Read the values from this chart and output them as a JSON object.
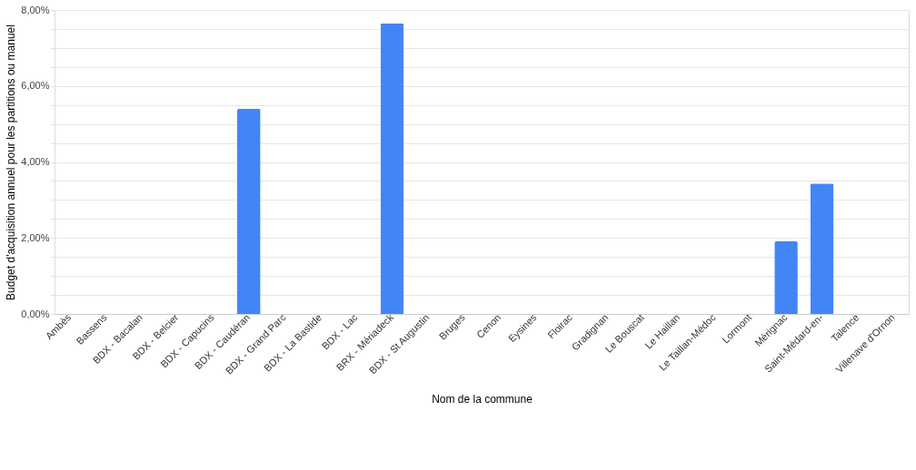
{
  "chart_data": {
    "type": "bar",
    "xlabel": "Nom de la commune",
    "ylabel": "Budget d'acquisition annuel pour les partitions ou manuel",
    "categories": [
      "Ambès",
      "Bassens",
      "BDX - Bacalan",
      "BDX - Belcier",
      "BDX - Capucins",
      "BDX - Caudéran",
      "BDX - Grand Parc",
      "BDX - La Bastide",
      "BDX - Lac",
      "BRX - Mériadeck",
      "BDX - St Augustin",
      "Bruges",
      "Cenon",
      "Eysines",
      "Floirac",
      "Gradignan",
      "Le Bouscat",
      "Le Haillan",
      "Le Taillan-Médoc",
      "Lormont",
      "Mérignac",
      "Saint-Médard-en-",
      "Talence",
      "Villenave d'Ornon"
    ],
    "values": [
      0,
      0,
      0,
      0,
      0,
      5.4,
      0,
      0,
      0,
      7.65,
      0,
      0,
      0,
      0,
      0,
      0,
      0,
      0,
      0,
      0,
      1.91,
      3.43,
      0,
      0
    ],
    "color": "#4285f4",
    "ylim": [
      0,
      8
    ],
    "yticks": [
      {
        "value": 0,
        "label": "0,00%"
      },
      {
        "value": 0.5,
        "label": null
      },
      {
        "value": 1,
        "label": null
      },
      {
        "value": 1.5,
        "label": null
      },
      {
        "value": 2,
        "label": "2,00%"
      },
      {
        "value": 2.5,
        "label": null
      },
      {
        "value": 3,
        "label": null
      },
      {
        "value": 3.5,
        "label": null
      },
      {
        "value": 4,
        "label": "4,00%"
      },
      {
        "value": 4.5,
        "label": null
      },
      {
        "value": 5,
        "label": null
      },
      {
        "value": 5.5,
        "label": null
      },
      {
        "value": 6,
        "label": "6,00%"
      },
      {
        "value": 6.5,
        "label": null
      },
      {
        "value": 7,
        "label": null
      },
      {
        "value": 7.5,
        "label": null
      },
      {
        "value": 8,
        "label": "8,00%"
      }
    ],
    "grid": "y"
  }
}
